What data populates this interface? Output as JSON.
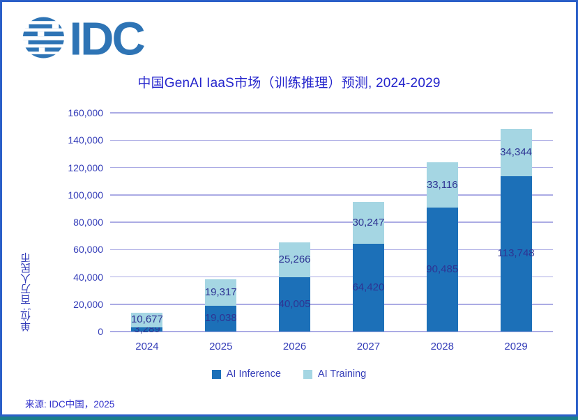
{
  "logo": {
    "text": "IDC",
    "icon": "idc-globe-icon"
  },
  "chart_data": {
    "type": "bar",
    "stacked": true,
    "title": "中国GenAI IaaS市场（训练推理）预测, 2024-2029",
    "ylabel": "单位; 百万人民币",
    "xlabel": "",
    "categories": [
      "2024",
      "2025",
      "2026",
      "2027",
      "2028",
      "2029"
    ],
    "series": [
      {
        "name": "AI Inference",
        "values": [
          3289,
          19038,
          40005,
          64420,
          90485,
          113748
        ]
      },
      {
        "name": "AI Training",
        "values": [
          10677,
          19317,
          25266,
          30247,
          33116,
          34344
        ]
      }
    ],
    "totals": [
      13966,
      38355,
      65271,
      94667,
      123601,
      148092
    ],
    "ylim": [
      0,
      160000
    ],
    "ytick_step": 20000,
    "grid": true,
    "legend_position": "bottom",
    "value_labels": true
  },
  "footer": {
    "source": "来源: IDC中国，2025"
  },
  "colors": {
    "inference": "#1C70B8",
    "training": "#A5D6E3",
    "gridline": "#ABABE4",
    "title_text": "#2424CC",
    "label_text": "#2E3493",
    "axis_text": "#333CB8",
    "source_text": "#3333CC",
    "logo_blue": "#2E74B5",
    "border_blue": "#2B5FC8",
    "footer_teal": "#1A7F8A"
  }
}
